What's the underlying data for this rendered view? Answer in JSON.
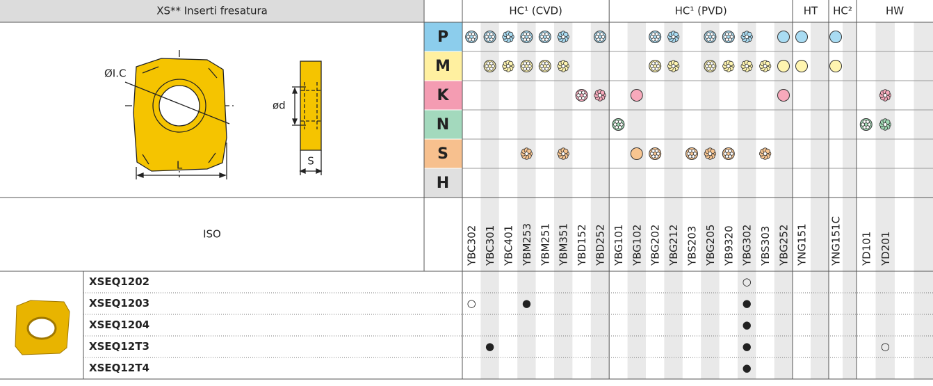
{
  "header": {
    "title": "XS** Inserti fresatura",
    "groups": [
      "HC¹ (CVD)",
      "HC¹ (PVD)",
      "HT",
      "HC²",
      "HW"
    ]
  },
  "drawing": {
    "labels": [
      "ØI.C",
      "ød",
      "L",
      "S"
    ]
  },
  "materials": [
    "P",
    "M",
    "K",
    "N",
    "S",
    "H"
  ],
  "iso": {
    "label": "ISO",
    "grades": [
      "YBC302",
      "YBC301",
      "YBC401",
      "YBM253",
      "YBM251",
      "YBM351",
      "YBD152",
      "YBD252",
      "YBG101",
      "YBG102",
      "YBG202",
      "YBG212",
      "YBS203",
      "YBG205",
      "YB9320",
      "YBG302",
      "YBS303",
      "YBG252",
      "YNG151",
      "YNG151C",
      "YD101",
      "YD201"
    ]
  },
  "inserts": [
    {
      "name": "XSEQ1202",
      "cells": [
        {
          "grade": "YBG302",
          "mark": "○"
        }
      ]
    },
    {
      "name": "XSEQ1203",
      "cells": [
        {
          "grade": "YBC302",
          "mark": "○"
        },
        {
          "grade": "YBM253",
          "mark": "●"
        },
        {
          "grade": "YBG302",
          "mark": "●"
        }
      ]
    },
    {
      "name": "XSEQ1204",
      "cells": [
        {
          "grade": "YBG302",
          "mark": "●"
        }
      ]
    },
    {
      "name": "XSEQ12T3",
      "cells": [
        {
          "grade": "YBC301",
          "mark": "●"
        },
        {
          "grade": "YBG302",
          "mark": "●"
        },
        {
          "grade": "YD201",
          "mark": "○"
        }
      ]
    },
    {
      "name": "XSEQ12T4",
      "cells": [
        {
          "grade": "YBG302",
          "mark": "●"
        }
      ]
    }
  ]
}
